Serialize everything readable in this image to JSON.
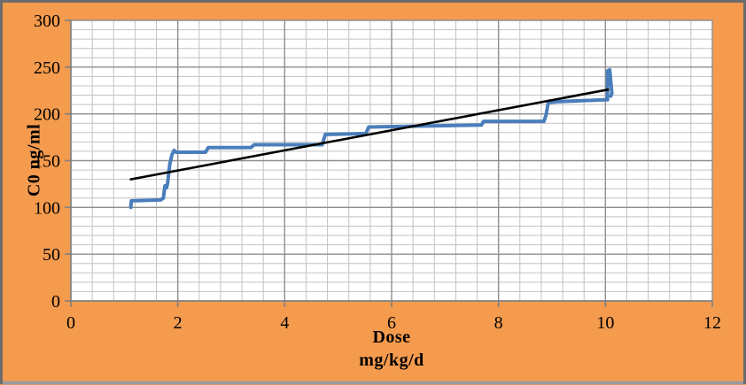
{
  "chart_data": {
    "type": "line",
    "title": "",
    "ylabel": "C0 ng/ml",
    "xlabel_lines": [
      "Dose",
      "mg/kg/d"
    ],
    "xlim": [
      0,
      12
    ],
    "ylim": [
      0,
      300
    ],
    "x_ticks": [
      0,
      2,
      4,
      6,
      8,
      10,
      12
    ],
    "y_ticks": [
      0,
      50,
      100,
      150,
      200,
      250,
      300
    ],
    "x_minor_step": 0.4,
    "y_minor_step": 10,
    "grid": "major and minor, both axes",
    "legend": "none",
    "series": [
      {
        "name": "C0 vs Dose stepped data",
        "color": "#4A7EBB",
        "width": 4,
        "points": [
          [
            1.12,
            100
          ],
          [
            1.13,
            107
          ],
          [
            1.68,
            108
          ],
          [
            1.73,
            110
          ],
          [
            1.76,
            123
          ],
          [
            1.79,
            121
          ],
          [
            1.81,
            126
          ],
          [
            1.85,
            146
          ],
          [
            1.89,
            156
          ],
          [
            1.93,
            161
          ],
          [
            1.97,
            159
          ],
          [
            2.52,
            159
          ],
          [
            2.57,
            164
          ],
          [
            3.37,
            164
          ],
          [
            3.43,
            167
          ],
          [
            4.7,
            167
          ],
          [
            4.76,
            178
          ],
          [
            5.52,
            179
          ],
          [
            5.57,
            186
          ],
          [
            6.6,
            187
          ],
          [
            7.68,
            188
          ],
          [
            7.72,
            192
          ],
          [
            8.85,
            192
          ],
          [
            8.89,
            199
          ],
          [
            8.93,
            212
          ],
          [
            9.1,
            213
          ],
          [
            10.0,
            215
          ],
          [
            10.04,
            215
          ],
          [
            10.04,
            246
          ],
          [
            10.08,
            247
          ],
          [
            10.12,
            222
          ],
          [
            10.1,
            219
          ]
        ]
      },
      {
        "name": "linear trendline",
        "color": "#000000",
        "width": 2.6,
        "points": [
          [
            1.12,
            130
          ],
          [
            10.05,
            226
          ]
        ]
      }
    ],
    "colors": {
      "chart_background": "#F59B4E",
      "plot_background": "#FFFFFF",
      "minor_grid": "#C2C2C2",
      "major_grid": "#8F8F8F",
      "axis_line": "#7F7F7F",
      "outer_border": "#6C6C6C",
      "tick_label": "#000000"
    }
  }
}
